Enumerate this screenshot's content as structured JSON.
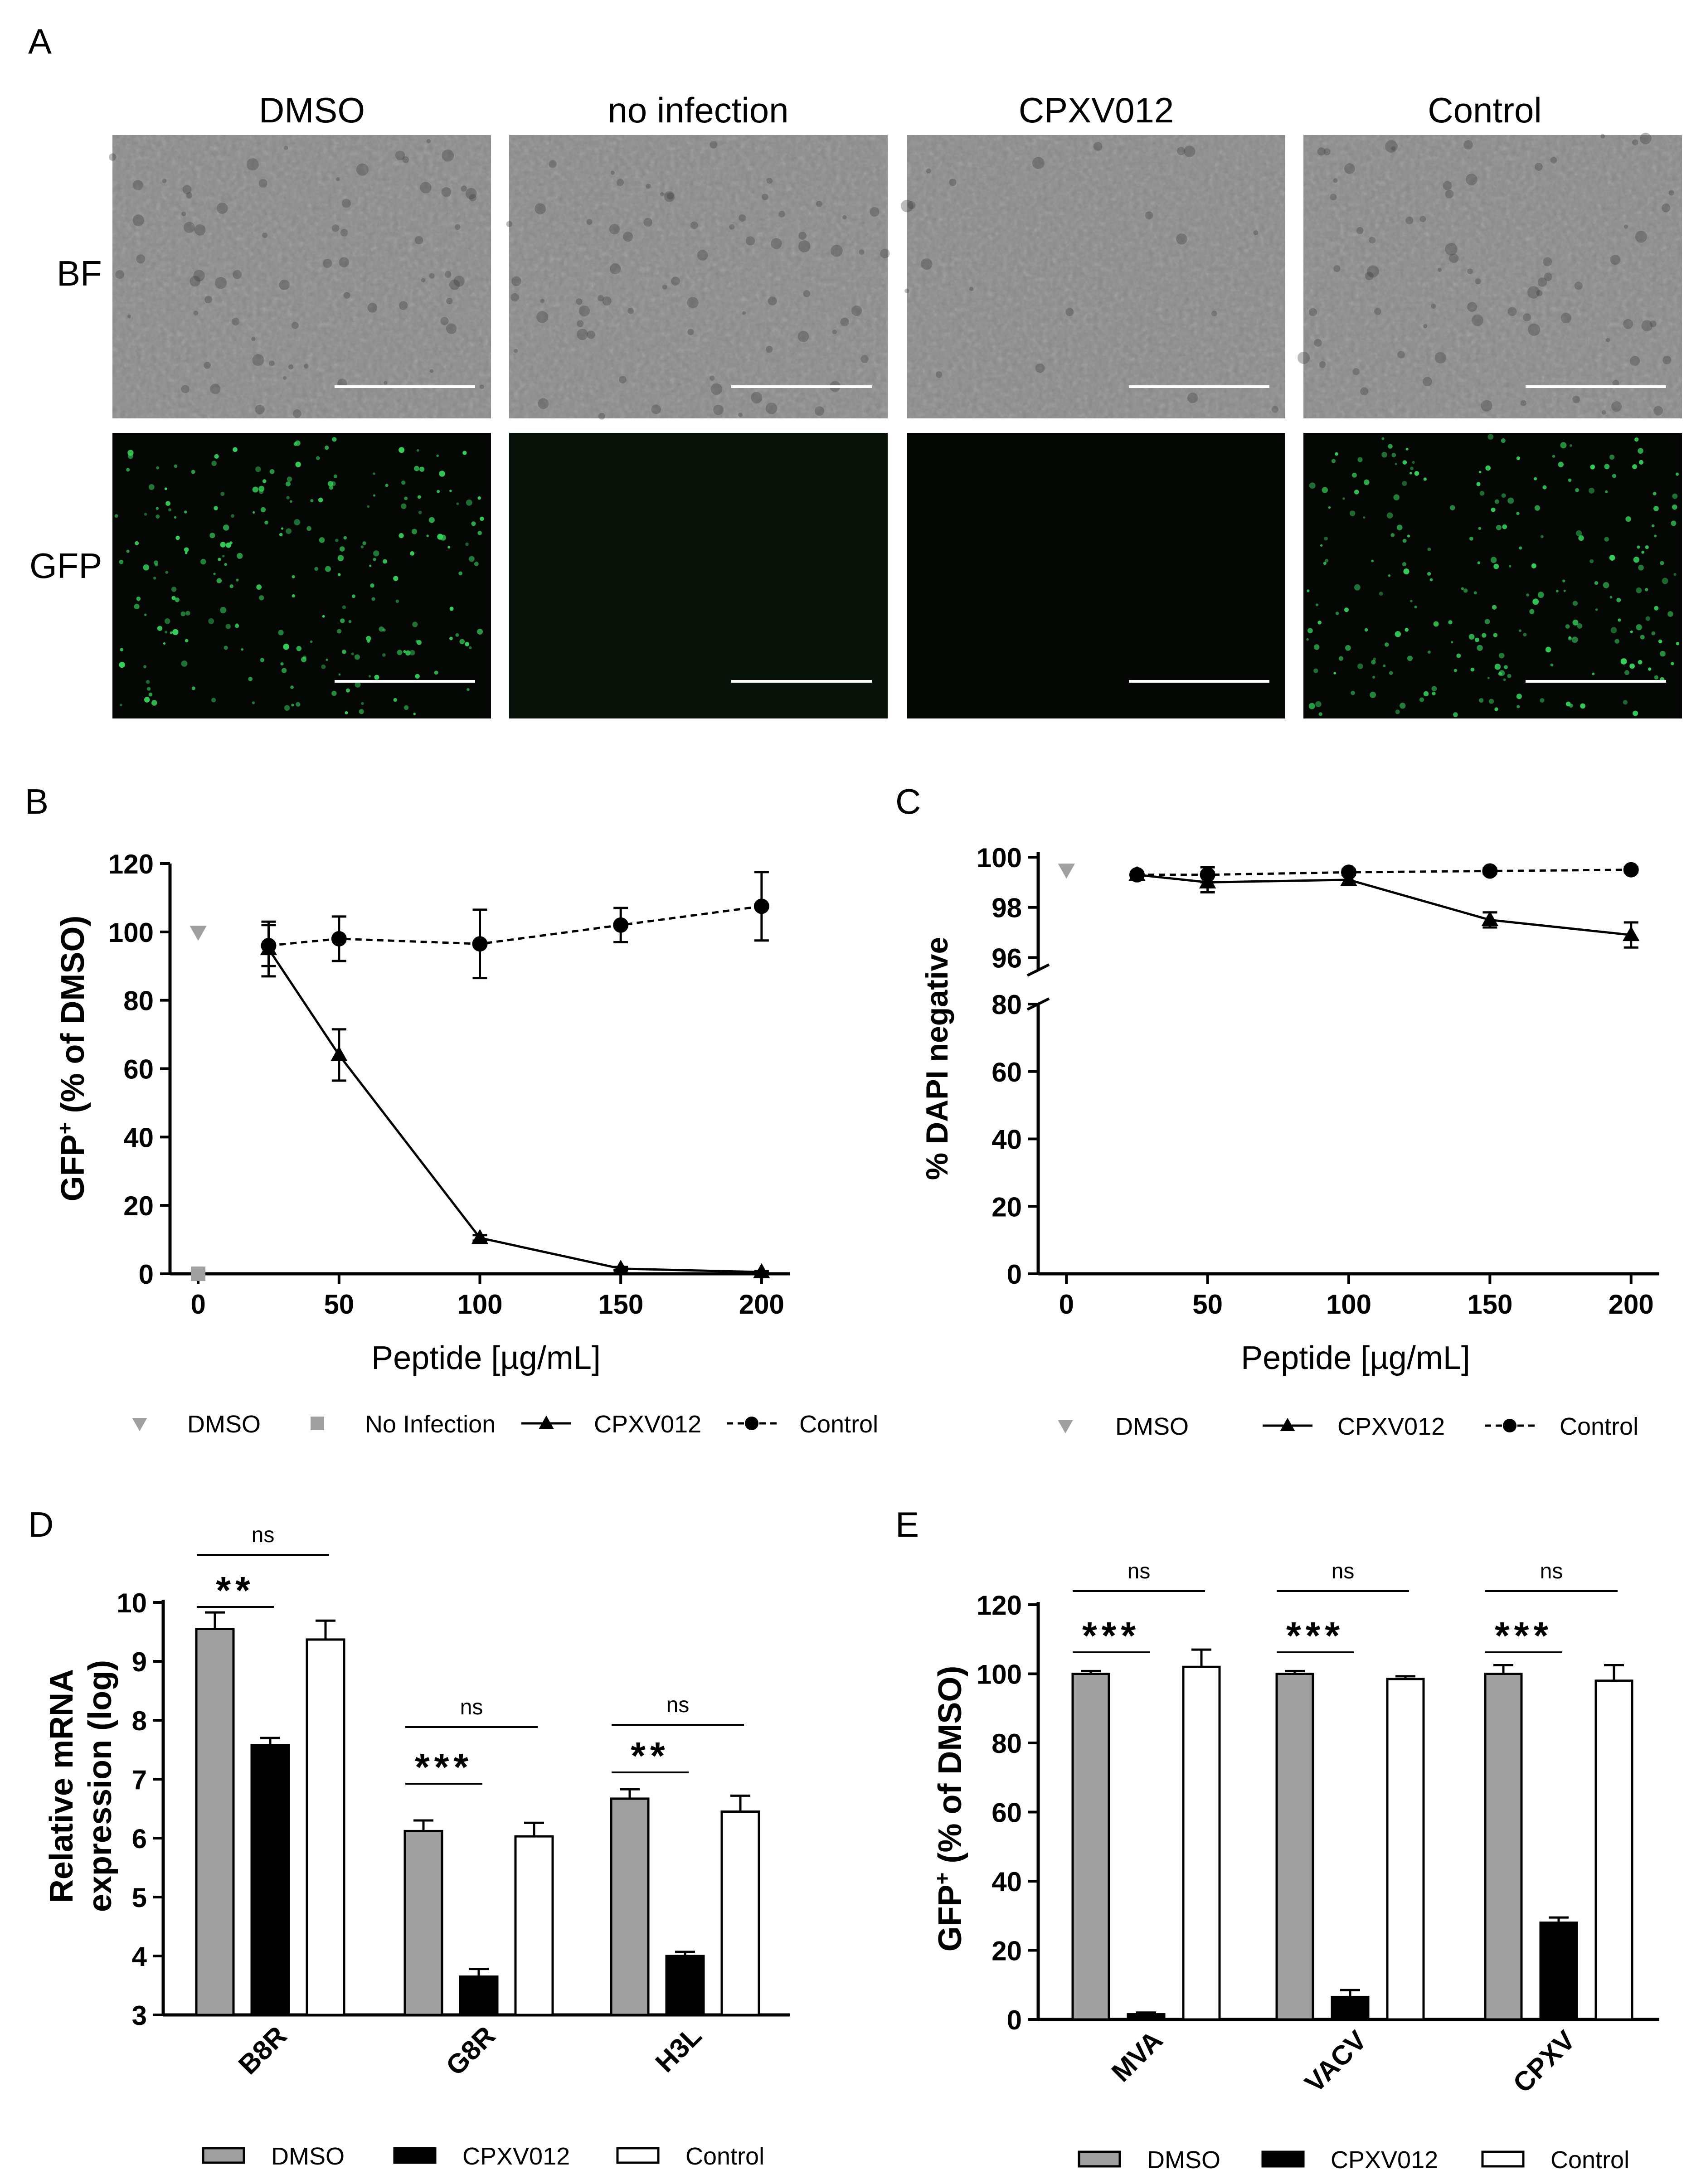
{
  "panel_letters": {
    "a": "A",
    "b": "B",
    "c": "C",
    "d": "D",
    "e": "E"
  },
  "panel_a": {
    "columns": [
      "DMSO",
      "no infection",
      "CPXV012",
      "Control"
    ],
    "rows": [
      "BF",
      "GFP"
    ],
    "gfp_density": [
      1.0,
      0.0,
      0.0,
      1.0
    ]
  },
  "colors": {
    "dmso": "#a0a0a0",
    "cpxv012": "#000000",
    "control": "#ffffff",
    "gfp": "#35d05a",
    "bf_background": "#8a8a8a"
  },
  "chart_data": [
    {
      "panel": "B",
      "type": "line",
      "ylabel": "GFP⁺ (% of DMSO)",
      "xlabel": "Peptide [µg/mL]",
      "x_ticks": [
        "0",
        "50",
        "100",
        "150",
        "200"
      ],
      "y_ticks": [
        "0",
        "20",
        "40",
        "60",
        "80",
        "100",
        "120"
      ],
      "xlim": [
        -10,
        210
      ],
      "ylim": [
        0,
        120
      ],
      "legend_position": "bottom",
      "legend": [
        "DMSO",
        "No Infection",
        "CPXV012",
        "Control"
      ],
      "series": [
        {
          "name": "DMSO",
          "marker": "triangle-down",
          "line": "none",
          "x": [
            0
          ],
          "y": [
            100
          ],
          "err": [
            0
          ]
        },
        {
          "name": "No Infection",
          "marker": "square",
          "line": "none",
          "x": [
            0
          ],
          "y": [
            0
          ],
          "err": [
            0
          ]
        },
        {
          "name": "CPXV012",
          "marker": "triangle",
          "line": "solid",
          "x": [
            25,
            50,
            100,
            150,
            200
          ],
          "y": [
            95,
            64,
            10.5,
            1.5,
            0.5
          ],
          "err": [
            8,
            7.5,
            0.8,
            0.5,
            0.3
          ]
        },
        {
          "name": "Control",
          "marker": "circle",
          "line": "dashed",
          "x": [
            25,
            50,
            100,
            150,
            200
          ],
          "y": [
            96,
            98,
            96.5,
            102,
            107.5
          ],
          "err": [
            6,
            6.5,
            10,
            5,
            10
          ]
        }
      ]
    },
    {
      "panel": "C",
      "type": "line",
      "ylabel": "% DAPI negative",
      "xlabel": "Peptide [µg/mL]",
      "x_ticks": [
        "0",
        "50",
        "100",
        "150",
        "200"
      ],
      "y_ticks_lower": [
        "0",
        "20",
        "40",
        "60",
        "80"
      ],
      "y_ticks_upper": [
        "96",
        "98",
        "100"
      ],
      "xlim": [
        -10,
        210
      ],
      "ylim_lower": [
        0,
        80
      ],
      "ylim_upper": [
        95.5,
        100.2
      ],
      "axis_break": true,
      "legend_position": "bottom",
      "legend": [
        "DMSO",
        "CPXV012",
        "Control"
      ],
      "series": [
        {
          "name": "DMSO",
          "marker": "triangle-down",
          "line": "none",
          "x": [
            0
          ],
          "y": [
            99.5
          ],
          "err": [
            0
          ]
        },
        {
          "name": "CPXV012",
          "marker": "triangle",
          "line": "solid",
          "x": [
            25,
            50,
            100,
            150,
            200
          ],
          "y": [
            99.3,
            99.0,
            99.1,
            97.5,
            96.9
          ],
          "err": [
            0.1,
            0.4,
            0.2,
            0.3,
            0.5
          ]
        },
        {
          "name": "Control",
          "marker": "circle",
          "line": "dashed",
          "x": [
            25,
            50,
            100,
            150,
            200
          ],
          "y": [
            99.3,
            99.3,
            99.4,
            99.45,
            99.5
          ],
          "err": [
            0.1,
            0.3,
            0.1,
            0.1,
            0.1
          ]
        }
      ]
    },
    {
      "panel": "D",
      "type": "bar",
      "ylabel_line1": "Relative mRNA",
      "ylabel_line2": "expression (log)",
      "categories": [
        "B8R",
        "G8R",
        "H3L"
      ],
      "y_ticks": [
        "3",
        "4",
        "5",
        "6",
        "7",
        "8",
        "9",
        "10"
      ],
      "ylim": [
        3,
        10
      ],
      "legend_position": "bottom",
      "legend": [
        "DMSO",
        "CPXV012",
        "Control"
      ],
      "series": [
        {
          "name": "DMSO",
          "values": [
            9.55,
            6.12,
            6.67
          ],
          "err": [
            0.28,
            0.18,
            0.16
          ]
        },
        {
          "name": "CPXV012",
          "values": [
            7.58,
            3.65,
            4.0
          ],
          "err": [
            0.12,
            0.13,
            0.07
          ]
        },
        {
          "name": "Control",
          "values": [
            9.37,
            6.03,
            6.45
          ],
          "err": [
            0.32,
            0.23,
            0.27
          ]
        }
      ],
      "annotations": [
        {
          "category": 0,
          "pair": "DMSO-CPXV012",
          "text": "**"
        },
        {
          "category": 0,
          "pair": "DMSO-Control",
          "text": "ns"
        },
        {
          "category": 1,
          "pair": "DMSO-CPXV012",
          "text": "***"
        },
        {
          "category": 1,
          "pair": "DMSO-Control",
          "text": "ns"
        },
        {
          "category": 2,
          "pair": "DMSO-CPXV012",
          "text": "**"
        },
        {
          "category": 2,
          "pair": "DMSO-Control",
          "text": "ns"
        }
      ]
    },
    {
      "panel": "E",
      "type": "bar",
      "ylabel": "GFP⁺ (% of DMSO)",
      "categories": [
        "MVA",
        "VACV",
        "CPXV"
      ],
      "y_ticks": [
        "0",
        "20",
        "40",
        "60",
        "80",
        "100",
        "120"
      ],
      "ylim": [
        0,
        120
      ],
      "legend_position": "bottom",
      "legend": [
        "DMSO",
        "CPXV012",
        "Control"
      ],
      "series": [
        {
          "name": "DMSO",
          "values": [
            100,
            100,
            100
          ],
          "err": [
            0.8,
            0.8,
            2.5
          ]
        },
        {
          "name": "CPXV012",
          "values": [
            1.5,
            6.5,
            28
          ],
          "err": [
            0.5,
            2,
            1.5
          ]
        },
        {
          "name": "Control",
          "values": [
            102,
            98.5,
            98
          ],
          "err": [
            5,
            0.8,
            4.5
          ]
        }
      ],
      "annotations": [
        {
          "category": 0,
          "pair": "DMSO-CPXV012",
          "text": "***"
        },
        {
          "category": 0,
          "pair": "DMSO-Control",
          "text": "ns"
        },
        {
          "category": 1,
          "pair": "DMSO-CPXV012",
          "text": "***"
        },
        {
          "category": 1,
          "pair": "DMSO-Control",
          "text": "ns"
        },
        {
          "category": 2,
          "pair": "DMSO-CPXV012",
          "text": "***"
        },
        {
          "category": 2,
          "pair": "DMSO-Control",
          "text": "ns"
        }
      ]
    }
  ]
}
